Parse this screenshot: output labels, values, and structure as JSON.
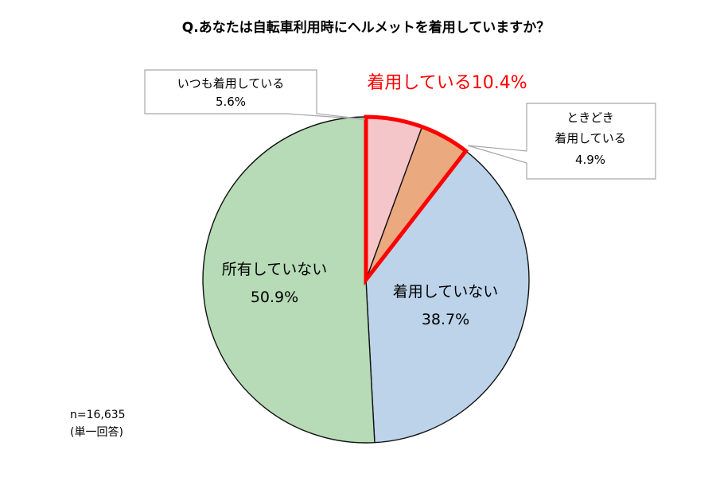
{
  "chart_data": {
    "type": "pie",
    "title": "Q.あなたは自転車利用時にヘルメットを着用していますか？",
    "slices": [
      {
        "label": "いつも着用している",
        "value": 5.6,
        "display": "5.6%",
        "color": "#f5c6c9"
      },
      {
        "label": "ときどき着用している",
        "label_lines": [
          "ときどき",
          "着用している"
        ],
        "value": 4.9,
        "display": "4.9%",
        "color": "#eba980"
      },
      {
        "label": "着用していない",
        "value": 38.7,
        "display": "38.7%",
        "color": "#bcd3ea"
      },
      {
        "label": "所有していない",
        "value": 50.9,
        "display": "50.9%",
        "color": "#b6dbb6"
      }
    ],
    "highlight": {
      "label": "着用している10.4%",
      "value": 10.4,
      "includes": [
        "いつも着用している",
        "ときどき着用している"
      ],
      "color": "#ff0000"
    },
    "notes": [
      "n=16,635",
      "(単一回答)"
    ]
  }
}
